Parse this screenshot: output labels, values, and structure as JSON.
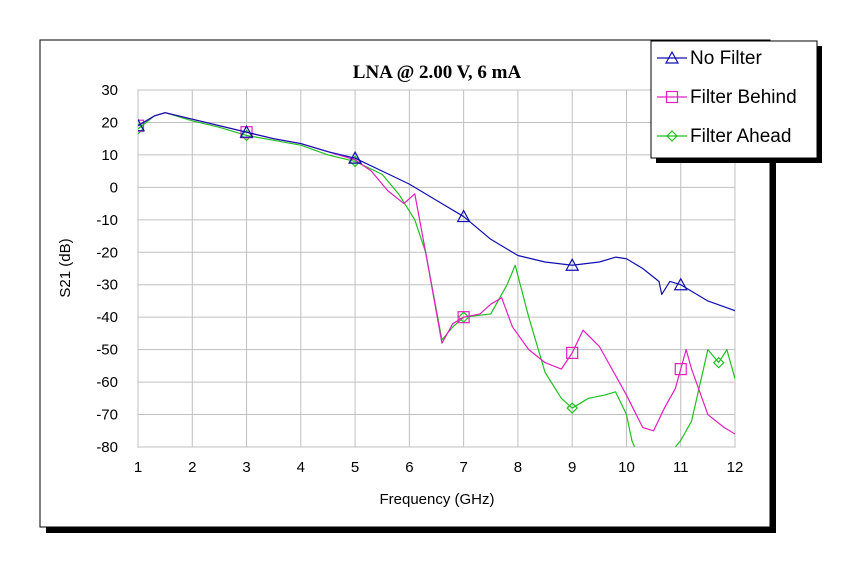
{
  "colors": {
    "no_filter": "#1010b0",
    "filter_behind": "#e020c0",
    "filter_ahead": "#20c020",
    "grid": "#c0c0c0"
  },
  "chart_data": {
    "type": "line",
    "title": "LNA @ 2.00 V, 6 mA",
    "xlabel": "Frequency (GHz)",
    "ylabel": "S21 (dB)",
    "xlim": [
      1,
      12
    ],
    "ylim": [
      -80,
      30
    ],
    "x_ticks": [
      1,
      2,
      3,
      4,
      5,
      6,
      7,
      8,
      9,
      10,
      11,
      12
    ],
    "y_ticks": [
      30,
      20,
      10,
      0,
      -10,
      -20,
      -30,
      -40,
      -50,
      -60,
      -70,
      -80
    ],
    "grid": true,
    "legend_position": "top-right",
    "series": [
      {
        "name": "No Filter",
        "color": "#1010b0",
        "marker": "triangle",
        "marker_x": [
          1,
          3,
          5,
          7,
          9,
          11
        ],
        "points": [
          [
            1,
            19
          ],
          [
            1.3,
            22
          ],
          [
            1.5,
            23
          ],
          [
            2,
            21
          ],
          [
            2.5,
            19
          ],
          [
            3,
            17
          ],
          [
            3.5,
            15
          ],
          [
            4,
            13.5
          ],
          [
            4.5,
            11
          ],
          [
            5,
            9
          ],
          [
            5.5,
            5
          ],
          [
            6,
            1
          ],
          [
            6.5,
            -4
          ],
          [
            7,
            -9
          ],
          [
            7.5,
            -16
          ],
          [
            8,
            -21
          ],
          [
            8.5,
            -23
          ],
          [
            9,
            -24
          ],
          [
            9.5,
            -23
          ],
          [
            9.8,
            -21.5
          ],
          [
            10,
            -22
          ],
          [
            10.3,
            -25
          ],
          [
            10.6,
            -29
          ],
          [
            10.65,
            -33
          ],
          [
            10.8,
            -29
          ],
          [
            11,
            -30
          ],
          [
            11.5,
            -35
          ],
          [
            12,
            -38
          ]
        ]
      },
      {
        "name": "Filter Behind",
        "color": "#e020c0",
        "marker": "square",
        "marker_x": [
          1,
          3,
          7,
          9,
          11
        ],
        "points": [
          [
            1,
            19
          ],
          [
            1.3,
            22
          ],
          [
            1.5,
            23
          ],
          [
            2,
            21
          ],
          [
            2.5,
            19
          ],
          [
            3,
            17
          ],
          [
            3.5,
            15
          ],
          [
            4,
            13.5
          ],
          [
            4.5,
            11
          ],
          [
            5,
            8.5
          ],
          [
            5.3,
            5
          ],
          [
            5.6,
            -1
          ],
          [
            5.9,
            -5
          ],
          [
            6.1,
            -2
          ],
          [
            6.3,
            -20
          ],
          [
            6.6,
            -48
          ],
          [
            6.8,
            -42
          ],
          [
            7,
            -40
          ],
          [
            7.3,
            -39
          ],
          [
            7.5,
            -36
          ],
          [
            7.7,
            -34
          ],
          [
            7.9,
            -43
          ],
          [
            8.2,
            -50
          ],
          [
            8.5,
            -54
          ],
          [
            8.8,
            -56
          ],
          [
            9,
            -51
          ],
          [
            9.2,
            -44
          ],
          [
            9.5,
            -49
          ],
          [
            9.8,
            -58
          ],
          [
            10,
            -64
          ],
          [
            10.3,
            -74
          ],
          [
            10.5,
            -75
          ],
          [
            10.7,
            -68
          ],
          [
            10.9,
            -62
          ],
          [
            11,
            -56
          ],
          [
            11.1,
            -50
          ],
          [
            11.2,
            -56
          ],
          [
            11.5,
            -70
          ],
          [
            11.8,
            -74
          ],
          [
            12,
            -76
          ]
        ]
      },
      {
        "name": "Filter Ahead",
        "color": "#20c020",
        "marker": "diamond",
        "marker_x": [
          1,
          3,
          5,
          7,
          9,
          11.7
        ],
        "points": [
          [
            1,
            18
          ],
          [
            1.3,
            22
          ],
          [
            1.5,
            23
          ],
          [
            2,
            20.5
          ],
          [
            2.5,
            18.5
          ],
          [
            3,
            16
          ],
          [
            3.5,
            14.5
          ],
          [
            4,
            13
          ],
          [
            4.5,
            10
          ],
          [
            5,
            8
          ],
          [
            5.5,
            4
          ],
          [
            5.8,
            -2
          ],
          [
            6.1,
            -10
          ],
          [
            6.3,
            -20
          ],
          [
            6.6,
            -47
          ],
          [
            6.8,
            -43
          ],
          [
            7,
            -40
          ],
          [
            7.5,
            -39
          ],
          [
            7.8,
            -30
          ],
          [
            7.95,
            -24
          ],
          [
            8.2,
            -40
          ],
          [
            8.5,
            -57
          ],
          [
            8.8,
            -65
          ],
          [
            9,
            -68
          ],
          [
            9.3,
            -65
          ],
          [
            9.6,
            -64
          ],
          [
            9.8,
            -63
          ],
          [
            10,
            -70
          ],
          [
            10.1,
            -78
          ],
          [
            10.15,
            -80
          ]
        ],
        "points_2": [
          [
            10.9,
            -80
          ],
          [
            11,
            -78
          ],
          [
            11.2,
            -72
          ],
          [
            11.5,
            -50
          ],
          [
            11.7,
            -54
          ],
          [
            11.85,
            -50
          ],
          [
            12,
            -59
          ]
        ]
      }
    ]
  }
}
